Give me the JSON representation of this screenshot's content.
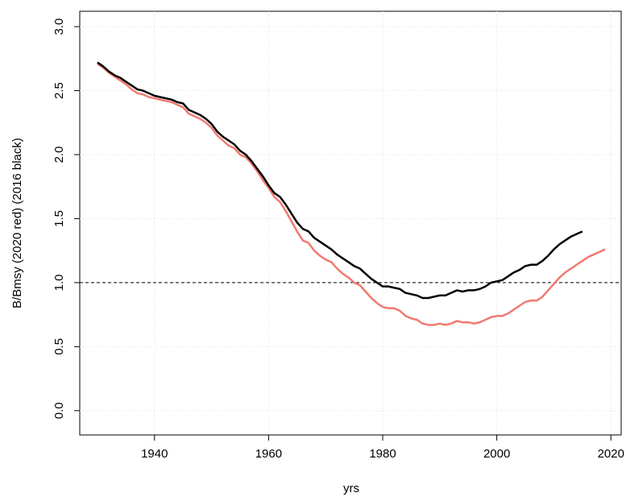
{
  "chart_data": {
    "type": "line",
    "xlabel": "yrs",
    "ylabel": "B/Bmsy (2020 red) (2016 black)",
    "x": [
      1930,
      1931,
      1932,
      1933,
      1934,
      1935,
      1936,
      1937,
      1938,
      1939,
      1940,
      1941,
      1942,
      1943,
      1944,
      1945,
      1946,
      1947,
      1948,
      1949,
      1950,
      1951,
      1952,
      1953,
      1954,
      1955,
      1956,
      1957,
      1958,
      1959,
      1960,
      1961,
      1962,
      1963,
      1964,
      1965,
      1966,
      1967,
      1968,
      1969,
      1970,
      1971,
      1972,
      1973,
      1974,
      1975,
      1976,
      1977,
      1978,
      1979,
      1980,
      1981,
      1982,
      1983,
      1984,
      1985,
      1986,
      1987,
      1988,
      1989,
      1990,
      1991,
      1992,
      1993,
      1994,
      1995,
      1996,
      1997,
      1998,
      1999,
      2000,
      2001,
      2002,
      2003,
      2004,
      2005,
      2006,
      2007,
      2008,
      2009,
      2010,
      2011,
      2012,
      2013,
      2014,
      2015,
      2016,
      2017,
      2018,
      2019
    ],
    "series": [
      {
        "color": "#000000",
        "values": [
          2.72,
          2.69,
          2.65,
          2.62,
          2.6,
          2.57,
          2.54,
          2.51,
          2.5,
          2.48,
          2.46,
          2.45,
          2.44,
          2.43,
          2.41,
          2.4,
          2.35,
          2.33,
          2.31,
          2.28,
          2.24,
          2.18,
          2.14,
          2.11,
          2.08,
          2.03,
          2.0,
          1.95,
          1.89,
          1.83,
          1.76,
          1.7,
          1.67,
          1.61,
          1.54,
          1.47,
          1.42,
          1.4,
          1.35,
          1.32,
          1.29,
          1.26,
          1.22,
          1.19,
          1.16,
          1.13,
          1.11,
          1.07,
          1.03,
          1.0,
          0.97,
          0.97,
          0.96,
          0.95,
          0.92,
          0.91,
          0.9,
          0.88,
          0.88,
          0.89,
          0.9,
          0.9,
          0.92,
          0.94,
          0.93,
          0.94,
          0.94,
          0.95,
          0.97,
          1.0,
          1.01,
          1.02,
          1.05,
          1.08,
          1.1,
          1.13,
          1.14,
          1.14,
          1.17,
          1.21,
          1.26,
          1.3,
          1.33,
          1.36,
          1.38,
          1.4,
          null,
          null,
          null,
          null
        ]
      },
      {
        "color": "#f07a70",
        "values": [
          2.71,
          2.68,
          2.64,
          2.61,
          2.58,
          2.55,
          2.51,
          2.48,
          2.47,
          2.45,
          2.44,
          2.43,
          2.42,
          2.41,
          2.39,
          2.37,
          2.32,
          2.3,
          2.28,
          2.25,
          2.21,
          2.15,
          2.11,
          2.07,
          2.05,
          2.0,
          1.98,
          1.93,
          1.87,
          1.8,
          1.74,
          1.67,
          1.63,
          1.56,
          1.48,
          1.4,
          1.33,
          1.31,
          1.25,
          1.21,
          1.18,
          1.16,
          1.11,
          1.07,
          1.04,
          1.0,
          0.98,
          0.93,
          0.88,
          0.84,
          0.81,
          0.8,
          0.8,
          0.78,
          0.74,
          0.72,
          0.71,
          0.68,
          0.67,
          0.67,
          0.68,
          0.67,
          0.68,
          0.7,
          0.69,
          0.69,
          0.68,
          0.69,
          0.71,
          0.73,
          0.74,
          0.74,
          0.76,
          0.79,
          0.82,
          0.85,
          0.86,
          0.86,
          0.89,
          0.94,
          0.99,
          1.04,
          1.08,
          1.11,
          1.14,
          1.17,
          1.2,
          1.22,
          1.24,
          1.26
        ]
      }
    ],
    "hline": 1.0,
    "xlim": [
      1926.9,
      2021.8
    ],
    "ylim": [
      -0.19,
      3.12
    ],
    "xticks": [
      1940,
      1960,
      1980,
      2000,
      2020
    ],
    "yticks": [
      {
        "value": 0,
        "label": "0.0"
      },
      {
        "value": 0.5,
        "label": "0.5"
      },
      {
        "value": 1,
        "label": "1.0"
      },
      {
        "value": 1.5,
        "label": "1.5"
      },
      {
        "value": 2,
        "label": "2.0"
      },
      {
        "value": 2.5,
        "label": "2.5"
      },
      {
        "value": 3,
        "label": "3.0"
      }
    ],
    "grid": true
  }
}
